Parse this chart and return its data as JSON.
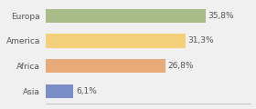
{
  "categories": [
    "Europa",
    "America",
    "Africa",
    "Asia"
  ],
  "values": [
    35.8,
    31.3,
    26.8,
    6.1
  ],
  "labels": [
    "35,8%",
    "31,3%",
    "26,8%",
    "6,1%"
  ],
  "bar_colors": [
    "#a8bc8a",
    "#f5d07a",
    "#e8aa78",
    "#7b8ec8"
  ],
  "background_color": "#f0f0f0",
  "xlim": [
    0,
    46
  ],
  "bar_height": 0.55,
  "label_fontsize": 6.5,
  "tick_fontsize": 6.5
}
